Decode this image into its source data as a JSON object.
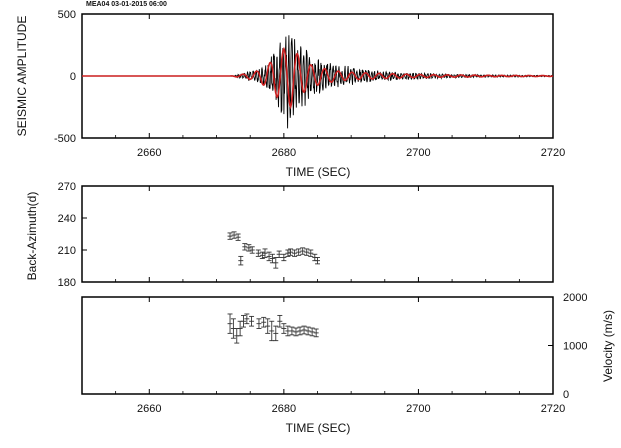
{
  "chart_data": [
    {
      "type": "line",
      "title": "MEA04   03-01-2015 06:00",
      "xlabel": "TIME (SEC)",
      "ylabel": "SEISMIC AMPLITUDE",
      "xlim": [
        2650,
        2720
      ],
      "ylim": [
        -500,
        500
      ],
      "xticks": [
        2660,
        2680,
        2700,
        2720
      ],
      "yticks": [
        -500,
        0,
        500
      ],
      "grid": false,
      "series": [
        {
          "color": "#000000",
          "values": [
            [
              2650,
              0
            ],
            [
              2672,
              0
            ],
            [
              2673,
              8
            ],
            [
              2674,
              30
            ],
            [
              2675,
              45
            ],
            [
              2676,
              60
            ],
            [
              2677,
              80
            ],
            [
              2678,
              150
            ],
            [
              2679,
              260
            ],
            [
              2680,
              400
            ],
            [
              2681,
              480
            ],
            [
              2682,
              300
            ],
            [
              2683,
              260
            ],
            [
              2684,
              200
            ],
            [
              2685,
              160
            ],
            [
              2686,
              130
            ],
            [
              2688,
              100
            ],
            [
              2690,
              80
            ],
            [
              2692,
              60
            ],
            [
              2695,
              40
            ],
            [
              2700,
              25
            ],
            [
              2705,
              15
            ],
            [
              2710,
              10
            ],
            [
              2715,
              8
            ],
            [
              2720,
              5
            ]
          ]
        },
        {
          "color": "#cc1f1f",
          "values": [
            [
              2650,
              0
            ],
            [
              2672,
              0
            ],
            [
              2674,
              15
            ],
            [
              2676,
              40
            ],
            [
              2678,
              110
            ],
            [
              2679,
              170
            ],
            [
              2680,
              220
            ],
            [
              2681,
              250
            ],
            [
              2682,
              180
            ],
            [
              2683,
              130
            ],
            [
              2684,
              90
            ],
            [
              2686,
              60
            ],
            [
              2688,
              40
            ],
            [
              2690,
              30
            ],
            [
              2695,
              20
            ],
            [
              2700,
              12
            ],
            [
              2710,
              6
            ],
            [
              2720,
              3
            ]
          ]
        }
      ]
    },
    {
      "type": "scatter",
      "xlabel": "",
      "ylabel": "Back-Azimuth(d)",
      "xlim": [
        2650,
        2720
      ],
      "ylim": [
        180,
        270
      ],
      "xticks": [
        2660,
        2680,
        2700,
        2720
      ],
      "yticks": [
        180,
        210,
        240,
        270
      ],
      "grid": false,
      "points": [
        [
          2672.0,
          223,
          3
        ],
        [
          2672.6,
          224,
          3
        ],
        [
          2673.2,
          222,
          3
        ],
        [
          2673.6,
          200,
          4
        ],
        [
          2674.2,
          213,
          3
        ],
        [
          2674.8,
          212,
          3
        ],
        [
          2675.3,
          210,
          3
        ],
        [
          2676.2,
          207,
          3
        ],
        [
          2676.8,
          205,
          3
        ],
        [
          2677.2,
          207,
          4
        ],
        [
          2677.8,
          204,
          4
        ],
        [
          2678.3,
          202,
          4
        ],
        [
          2678.8,
          198,
          5
        ],
        [
          2679.3,
          206,
          3
        ],
        [
          2680.0,
          203,
          3
        ],
        [
          2680.6,
          207,
          3
        ],
        [
          2681.0,
          208,
          3
        ],
        [
          2681.6,
          207,
          3
        ],
        [
          2682.2,
          208,
          3
        ],
        [
          2682.8,
          209,
          3
        ],
        [
          2683.4,
          208,
          3
        ],
        [
          2684.0,
          207,
          3
        ],
        [
          2684.6,
          203,
          3
        ],
        [
          2685.0,
          200,
          3
        ]
      ]
    },
    {
      "type": "scatter",
      "xlabel": "TIME (SEC)",
      "ylabel": "Velocity (m/s)",
      "xlim": [
        2650,
        2720
      ],
      "ylim": [
        0,
        2000
      ],
      "xticks": [
        2660,
        2680,
        2700,
        2720
      ],
      "yticks": [
        0,
        1000,
        2000
      ],
      "grid": false,
      "points": [
        [
          2672.0,
          1450,
          200
        ],
        [
          2672.5,
          1350,
          200
        ],
        [
          2673.0,
          1200,
          150
        ],
        [
          2673.5,
          1350,
          150
        ],
        [
          2674.0,
          1500,
          120
        ],
        [
          2674.5,
          1550,
          100
        ],
        [
          2675.2,
          1500,
          100
        ],
        [
          2676.3,
          1450,
          100
        ],
        [
          2677.0,
          1480,
          100
        ],
        [
          2677.6,
          1400,
          150
        ],
        [
          2678.2,
          1300,
          200
        ],
        [
          2678.8,
          1250,
          150
        ],
        [
          2679.4,
          1500,
          120
        ],
        [
          2680.0,
          1350,
          100
        ],
        [
          2680.6,
          1300,
          100
        ],
        [
          2681.2,
          1300,
          80
        ],
        [
          2681.8,
          1280,
          80
        ],
        [
          2682.4,
          1300,
          80
        ],
        [
          2683.0,
          1320,
          80
        ],
        [
          2683.6,
          1300,
          80
        ],
        [
          2684.2,
          1280,
          80
        ],
        [
          2684.8,
          1260,
          80
        ]
      ]
    }
  ]
}
